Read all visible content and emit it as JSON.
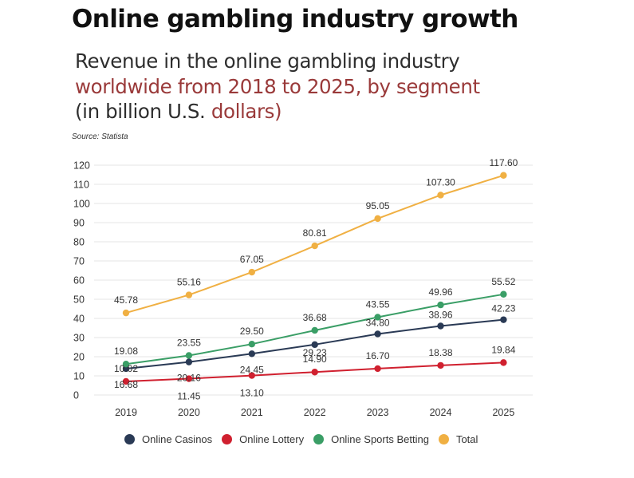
{
  "header": {
    "headline": "Online gambling industry growth",
    "subtitle_line1": "Revenue in the online gambling industry",
    "subtitle_line2": "worldwide from 2018 to 2025, by segment",
    "subtitle_line3_pre": "(in billion U.S. ",
    "subtitle_line3_hl": "dollars)",
    "source": "Source: Statista"
  },
  "chart_data": {
    "type": "line",
    "title": "Revenue in the online gambling industry worldwide from 2018 to 2025, by segment (in billion U.S. dollars)",
    "xlabel": "",
    "ylabel": "",
    "categories": [
      "2019",
      "2020",
      "2021",
      "2022",
      "2023",
      "2024",
      "2025"
    ],
    "y_ticks": [
      "0",
      "10",
      "20",
      "30",
      "40",
      "50",
      "60",
      "70",
      "80",
      "90",
      "100",
      "110",
      "120"
    ],
    "ylim": [
      0,
      120
    ],
    "grid": true,
    "legend_position": "bottom",
    "series": [
      {
        "name": "Online Casinos",
        "color": "#2a3a55",
        "values": [
          16.68,
          20.16,
          24.45,
          29.23,
          34.8,
          38.96,
          42.23
        ],
        "labels": [
          "16.68",
          "20.16",
          "24.45",
          "29.23",
          "34.80",
          "38.96",
          "42.23"
        ]
      },
      {
        "name": "Online Lottery",
        "color": "#d0202f",
        "values": [
          10.02,
          11.45,
          13.1,
          14.9,
          16.7,
          18.38,
          19.84
        ],
        "labels": [
          "10.02",
          "11.45",
          "13.10",
          "14.90",
          "16.70",
          "18.38",
          "19.84"
        ]
      },
      {
        "name": "Online Sports Betting",
        "color": "#3a9e66",
        "values": [
          19.08,
          23.55,
          29.5,
          36.68,
          43.55,
          49.96,
          55.52
        ],
        "labels": [
          "19.08",
          "23.55",
          "29.50",
          "36.68",
          "43.55",
          "49.96",
          "55.52"
        ]
      },
      {
        "name": "Total",
        "color": "#f0b043",
        "values": [
          45.78,
          55.16,
          67.05,
          80.81,
          95.05,
          107.3,
          117.6
        ],
        "labels": [
          "45.78",
          "55.16",
          "67.05",
          "80.81",
          "95.05",
          "107.30",
          "117.60"
        ]
      }
    ]
  }
}
